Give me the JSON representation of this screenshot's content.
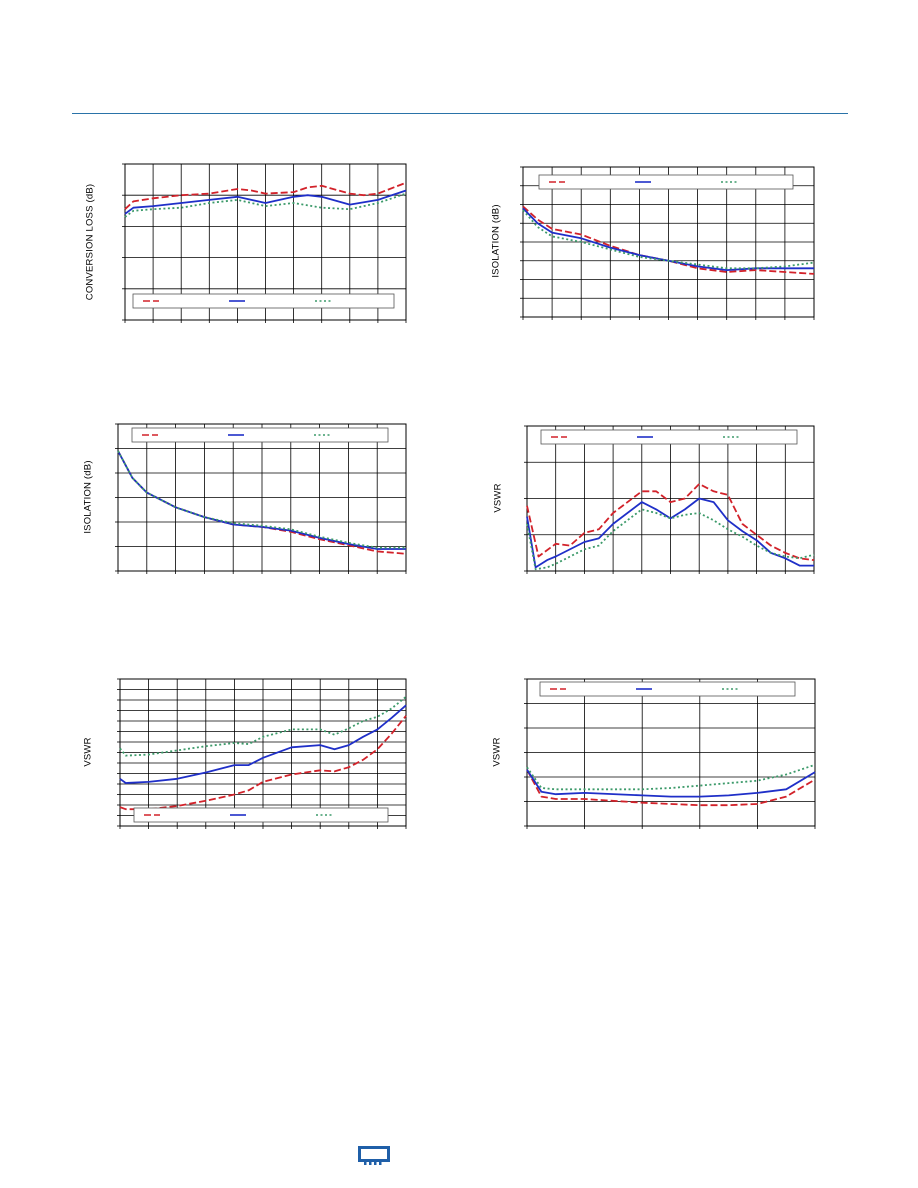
{
  "colors": {
    "rule": "#2a73a8",
    "red": "#d2222a",
    "blue": "#1f2fc8",
    "green": "#3c9a6a",
    "grid": "#000000"
  },
  "charts": [
    {
      "id": "chart-conversion-loss",
      "ylabel": "CONVERSION LOSS (dB)",
      "legend_position": "bottom",
      "chart_data": {
        "type": "line",
        "xlim": [
          0,
          10
        ],
        "ylim": [
          0,
          5
        ],
        "grid": true,
        "x_divisions": 10,
        "y_divisions": 5,
        "series": [
          {
            "color": "red",
            "dash": "dashed",
            "x": [
              0,
              0.3,
              1,
              2,
              3,
              4,
              4.5,
              5,
              6,
              6.5,
              7,
              8,
              8.5,
              9,
              10
            ],
            "y": [
              3.55,
              3.8,
              3.9,
              4.0,
              4.05,
              4.2,
              4.15,
              4.05,
              4.1,
              4.25,
              4.3,
              4.05,
              4.0,
              4.05,
              4.4
            ]
          },
          {
            "color": "blue",
            "dash": "solid",
            "x": [
              0,
              0.3,
              1,
              2,
              3,
              4,
              5,
              6,
              6.5,
              7,
              8,
              9,
              10
            ],
            "y": [
              3.4,
              3.6,
              3.65,
              3.75,
              3.85,
              3.95,
              3.75,
              3.95,
              4.0,
              3.95,
              3.7,
              3.85,
              4.15
            ]
          },
          {
            "color": "green",
            "dash": "dotted",
            "x": [
              0,
              0.3,
              1,
              2,
              3,
              4,
              5,
              6,
              7,
              8,
              9,
              10
            ],
            "y": [
              3.3,
              3.5,
              3.55,
              3.6,
              3.75,
              3.85,
              3.65,
              3.75,
              3.6,
              3.55,
              3.75,
              4.05
            ]
          }
        ]
      }
    },
    {
      "id": "chart-isolation-1",
      "ylabel": "ISOLATION (dB)",
      "legend_position": "top",
      "chart_data": {
        "type": "line",
        "xlim": [
          0,
          10
        ],
        "ylim": [
          0,
          8
        ],
        "grid": true,
        "x_divisions": 10,
        "y_divisions": 8,
        "series": [
          {
            "color": "red",
            "dash": "dashed",
            "x": [
              0,
              0.5,
              1,
              2,
              3,
              4,
              5,
              6,
              7,
              8,
              9,
              10
            ],
            "y": [
              5.9,
              5.2,
              4.7,
              4.4,
              3.8,
              3.3,
              3.0,
              2.6,
              2.4,
              2.5,
              2.4,
              2.3
            ]
          },
          {
            "color": "blue",
            "dash": "solid",
            "x": [
              0,
              0.5,
              1,
              2,
              3,
              4,
              5,
              6,
              7,
              8,
              9,
              10
            ],
            "y": [
              5.8,
              5.0,
              4.5,
              4.2,
              3.7,
              3.3,
              3.0,
              2.7,
              2.5,
              2.6,
              2.6,
              2.6
            ]
          },
          {
            "color": "green",
            "dash": "dotted",
            "x": [
              0,
              0.5,
              1,
              2,
              3,
              4,
              5,
              6,
              7,
              8,
              9,
              10
            ],
            "y": [
              5.7,
              4.8,
              4.3,
              4.0,
              3.6,
              3.2,
              3.0,
              2.8,
              2.6,
              2.6,
              2.7,
              2.9
            ]
          }
        ]
      }
    },
    {
      "id": "chart-isolation-2",
      "ylabel": "ISOLATION (dB)",
      "legend_position": "top",
      "chart_data": {
        "type": "line",
        "xlim": [
          0,
          10
        ],
        "ylim": [
          0,
          6
        ],
        "grid": true,
        "x_divisions": 10,
        "y_divisions": 6,
        "series": [
          {
            "color": "red",
            "dash": "dashed",
            "x": [
              0,
              0.5,
              1,
              2,
              3,
              4,
              5,
              6,
              7,
              8,
              9,
              10
            ],
            "y": [
              4.9,
              3.8,
              3.2,
              2.6,
              2.2,
              1.9,
              1.8,
              1.6,
              1.3,
              1.05,
              0.8,
              0.7
            ]
          },
          {
            "color": "blue",
            "dash": "solid",
            "x": [
              0,
              0.5,
              1,
              2,
              3,
              4,
              5,
              6,
              7,
              8,
              9,
              10
            ],
            "y": [
              4.9,
              3.8,
              3.2,
              2.6,
              2.2,
              1.9,
              1.8,
              1.65,
              1.35,
              1.1,
              0.9,
              0.9
            ]
          },
          {
            "color": "green",
            "dash": "dotted",
            "x": [
              0,
              0.5,
              1,
              2,
              3,
              4,
              5,
              6,
              7,
              8,
              9,
              10
            ],
            "y": [
              4.9,
              3.8,
              3.2,
              2.6,
              2.2,
              1.95,
              1.85,
              1.7,
              1.4,
              1.15,
              0.95,
              0.95
            ]
          }
        ]
      }
    },
    {
      "id": "chart-vswr-1",
      "ylabel": "VSWR",
      "legend_position": "top",
      "chart_data": {
        "type": "line",
        "xlim": [
          0,
          10
        ],
        "ylim": [
          0,
          4
        ],
        "grid": true,
        "x_divisions": 10,
        "y_divisions": 4,
        "series": [
          {
            "color": "red",
            "dash": "dashed",
            "x": [
              0,
              0.4,
              1,
              1.5,
              2,
              2.5,
              3,
              4,
              4.5,
              5,
              5.5,
              6,
              6.5,
              7,
              7.5,
              8,
              8.5,
              9,
              9.5,
              10
            ],
            "y": [
              1.8,
              0.4,
              0.75,
              0.7,
              1.05,
              1.15,
              1.6,
              2.2,
              2.2,
              1.9,
              2.0,
              2.4,
              2.2,
              2.1,
              1.3,
              1.0,
              0.7,
              0.5,
              0.35,
              0.3
            ]
          },
          {
            "color": "blue",
            "dash": "solid",
            "x": [
              0,
              0.3,
              0.7,
              1,
              2,
              2.5,
              3,
              4,
              4.5,
              5,
              5.5,
              6,
              6.5,
              7,
              7.5,
              8,
              8.5,
              9,
              9.5,
              10
            ],
            "y": [
              1.5,
              0.1,
              0.3,
              0.4,
              0.8,
              0.9,
              1.3,
              1.9,
              1.7,
              1.45,
              1.7,
              2.0,
              1.9,
              1.4,
              1.1,
              0.85,
              0.5,
              0.35,
              0.15,
              0.15
            ]
          },
          {
            "color": "green",
            "dash": "dotted",
            "x": [
              0,
              0.3,
              0.7,
              1,
              2,
              2.5,
              3,
              4,
              4.5,
              5,
              5.5,
              6,
              6.5,
              7,
              7.5,
              8,
              8.5,
              9,
              9.5,
              10
            ],
            "y": [
              1.3,
              0.05,
              0.1,
              0.2,
              0.6,
              0.7,
              1.1,
              1.7,
              1.6,
              1.45,
              1.55,
              1.6,
              1.4,
              1.15,
              0.95,
              0.7,
              0.5,
              0.4,
              0.35,
              0.45
            ]
          }
        ]
      }
    },
    {
      "id": "chart-vswr-2",
      "ylabel": "VSWR",
      "legend_position": "bottom",
      "chart_data": {
        "type": "line",
        "xlim": [
          0,
          10
        ],
        "ylim": [
          0,
          14
        ],
        "grid": true,
        "x_divisions": 10,
        "y_divisions": 14,
        "series": [
          {
            "color": "red",
            "dash": "dashed",
            "x": [
              0,
              0.2,
              1,
              2,
              3,
              4,
              4.5,
              5,
              6,
              7,
              7.5,
              8,
              8.5,
              9,
              9.5,
              10
            ],
            "y": [
              1.8,
              1.6,
              1.6,
              1.9,
              2.4,
              3.0,
              3.4,
              4.2,
              4.9,
              5.3,
              5.2,
              5.6,
              6.3,
              7.3,
              8.8,
              10.5
            ]
          },
          {
            "color": "blue",
            "dash": "solid",
            "x": [
              0,
              0.2,
              1,
              2,
              3,
              4,
              4.5,
              5,
              6,
              7,
              7.5,
              8,
              8.5,
              9,
              9.5,
              10
            ],
            "y": [
              4.5,
              4.1,
              4.2,
              4.5,
              5.1,
              5.8,
              5.8,
              6.5,
              7.5,
              7.7,
              7.3,
              7.7,
              8.5,
              9.2,
              10.3,
              11.5
            ]
          },
          {
            "color": "green",
            "dash": "dotted",
            "x": [
              0,
              0.2,
              1,
              2,
              3,
              4,
              4.5,
              5,
              6,
              7,
              7.5,
              8,
              8.5,
              9,
              9.5,
              10
            ],
            "y": [
              7.4,
              6.7,
              6.8,
              7.2,
              7.6,
              7.9,
              7.8,
              8.5,
              9.2,
              9.2,
              8.7,
              9.3,
              10.0,
              10.4,
              11.2,
              12.3
            ]
          }
        ]
      }
    },
    {
      "id": "chart-vswr-3",
      "ylabel": "VSWR",
      "legend_position": "top",
      "chart_data": {
        "type": "line",
        "xlim": [
          0,
          5
        ],
        "ylim": [
          0,
          6
        ],
        "grid": true,
        "x_divisions": 5,
        "y_divisions": 6,
        "series": [
          {
            "color": "red",
            "dash": "dashed",
            "x": [
              0,
              0.25,
              0.5,
              1,
              2,
              2.5,
              3,
              3.5,
              4,
              4.5,
              5
            ],
            "y": [
              2.3,
              1.2,
              1.1,
              1.1,
              0.95,
              0.9,
              0.85,
              0.85,
              0.9,
              1.2,
              1.9
            ]
          },
          {
            "color": "blue",
            "dash": "solid",
            "x": [
              0,
              0.25,
              0.5,
              1,
              2,
              2.5,
              3,
              3.5,
              4,
              4.5,
              5
            ],
            "y": [
              2.3,
              1.4,
              1.3,
              1.35,
              1.25,
              1.2,
              1.2,
              1.25,
              1.35,
              1.5,
              2.2
            ]
          },
          {
            "color": "green",
            "dash": "dotted",
            "x": [
              0,
              0.25,
              0.5,
              1,
              2,
              2.5,
              3,
              3.5,
              4,
              4.5,
              5
            ],
            "y": [
              2.4,
              1.55,
              1.5,
              1.5,
              1.5,
              1.55,
              1.65,
              1.75,
              1.85,
              2.1,
              2.5
            ]
          }
        ]
      }
    }
  ],
  "footer": {
    "logo_icon": "company-logo-icon"
  }
}
